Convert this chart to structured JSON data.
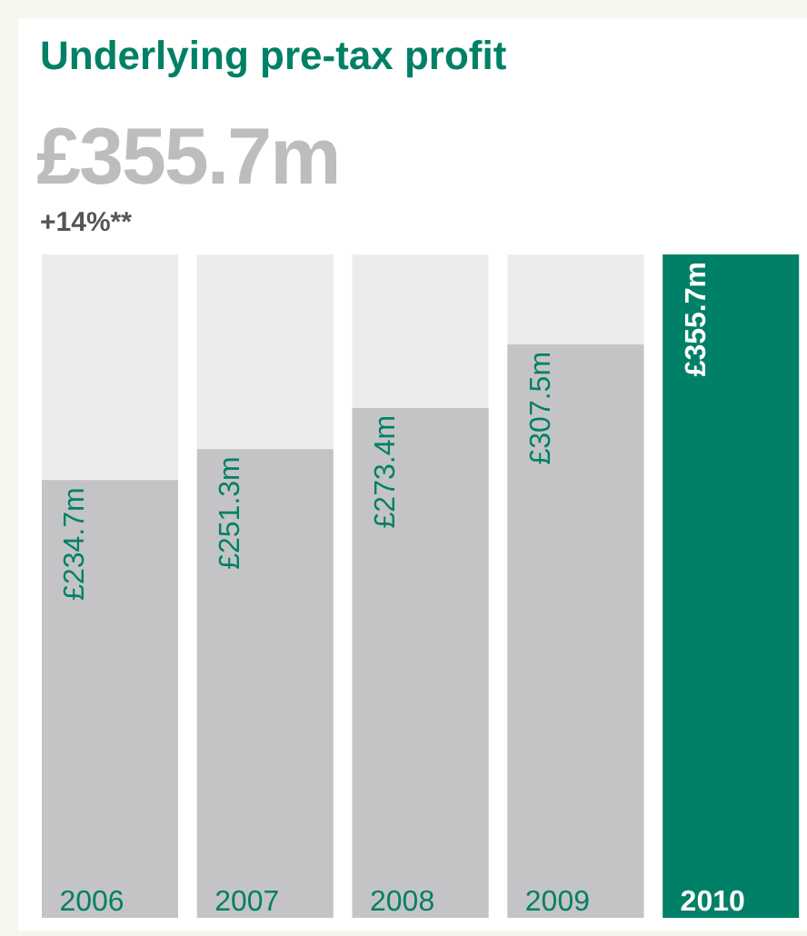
{
  "chart_data": {
    "type": "bar",
    "title": "Underlying pre-tax profit",
    "subtitle": "£355.7m",
    "annotations": [
      "+14%**"
    ],
    "categories": [
      "2006",
      "2007",
      "2008",
      "2009",
      "2010"
    ],
    "values": [
      234.7,
      251.3,
      273.4,
      307.5,
      355.7
    ],
    "colors": [
      "#c4c4c6",
      "#c4c4c6",
      "#c4c4c6",
      "#c4c4c6",
      "#008066"
    ],
    "value_labels": [
      "£234.7m",
      "£251.3m",
      "£273.4m",
      "£307.5m",
      "£355.7m"
    ]
  }
}
